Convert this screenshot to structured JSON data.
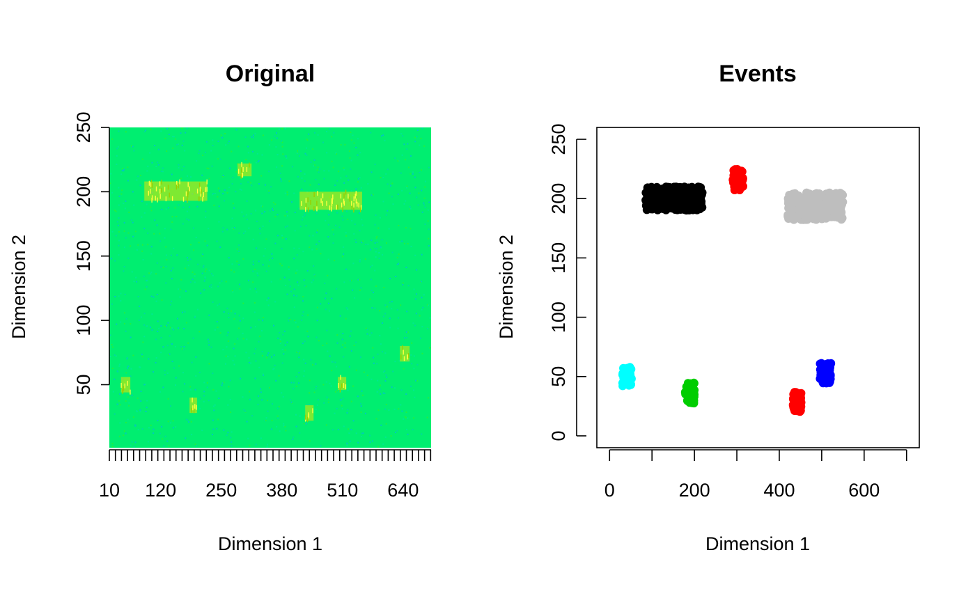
{
  "chart_data": [
    {
      "type": "heatmap",
      "title": "Original",
      "xlabel": "Dimension 1",
      "ylabel": "Dimension 2",
      "xlim": [
        10,
        700
      ],
      "ylim": [
        1,
        250
      ],
      "xticks": [
        "10",
        "120",
        "250",
        "380",
        "510",
        "640"
      ],
      "yticks": [
        "50",
        "100",
        "150",
        "200",
        "250"
      ],
      "background_color": "#00ee70",
      "event_color": "#e6e600",
      "events": [
        {
          "x": [
            85,
            220
          ],
          "y": [
            193,
            208
          ]
        },
        {
          "x": [
            285,
            315
          ],
          "y": [
            212,
            222
          ]
        },
        {
          "x": [
            418,
            552
          ],
          "y": [
            186,
            200
          ]
        },
        {
          "x": [
            35,
            55
          ],
          "y": [
            44,
            56
          ]
        },
        {
          "x": [
            182,
            198
          ],
          "y": [
            28,
            40
          ]
        },
        {
          "x": [
            430,
            448
          ],
          "y": [
            22,
            34
          ]
        },
        {
          "x": [
            500,
            518
          ],
          "y": [
            46,
            56
          ]
        },
        {
          "x": [
            633,
            654
          ],
          "y": [
            68,
            80
          ]
        }
      ]
    },
    {
      "type": "scatter",
      "title": "Events",
      "xlabel": "Dimension 1",
      "ylabel": "Dimension 2",
      "xlim": [
        -30,
        730
      ],
      "ylim": [
        -10,
        260
      ],
      "xticks": [
        "0",
        "200",
        "400",
        "600"
      ],
      "yticks": [
        "0",
        "50",
        "100",
        "150",
        "200",
        "250"
      ],
      "series": [
        {
          "color": "#000000",
          "x": [
            85,
            220
          ],
          "y": [
            190,
            210
          ]
        },
        {
          "color": "#ff0000",
          "x": [
            290,
            315
          ],
          "y": [
            207,
            225
          ]
        },
        {
          "color": "#bebebe",
          "x": [
            420,
            550
          ],
          "y": [
            182,
            205
          ]
        },
        {
          "color": "#00ffff",
          "x": [
            30,
            52
          ],
          "y": [
            42,
            58
          ]
        },
        {
          "color": "#00cd00",
          "x": [
            178,
            200
          ],
          "y": [
            27,
            45
          ]
        },
        {
          "color": "#ff0000",
          "x": [
            432,
            452
          ],
          "y": [
            20,
            37
          ]
        },
        {
          "color": "#0000ff",
          "x": [
            495,
            522
          ],
          "y": [
            44,
            62
          ]
        }
      ]
    }
  ]
}
